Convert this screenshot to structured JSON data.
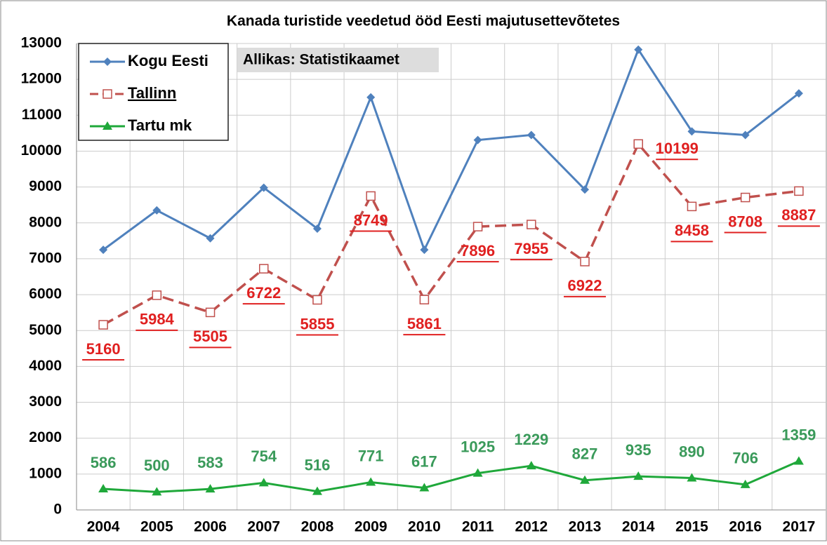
{
  "chart_data": {
    "type": "line",
    "title": "Kanada turistide veedetud ööd Eesti majutusettevõtetes",
    "annotation": "Allikas: Statistikaamet",
    "categories": [
      "2004",
      "2005",
      "2006",
      "2007",
      "2008",
      "2009",
      "2010",
      "2011",
      "2012",
      "2013",
      "2014",
      "2015",
      "2016",
      "2017"
    ],
    "series": [
      {
        "name": "Kogu Eesti",
        "color": "#4f81bd",
        "marker": "diamond",
        "dashed": false,
        "labels": false,
        "values": [
          7250,
          8350,
          7570,
          8980,
          7840,
          11500,
          7250,
          10310,
          10450,
          8930,
          12830,
          10550,
          10450,
          11610
        ]
      },
      {
        "name": "Tallinn",
        "color": "#c0504d",
        "marker": "square",
        "dashed": true,
        "labels": true,
        "label_color": "#e02020",
        "values": [
          5160,
          5984,
          5505,
          6722,
          5855,
          8749,
          5861,
          7896,
          7955,
          6922,
          10199,
          8458,
          8708,
          8887
        ]
      },
      {
        "name": "Tartu mk",
        "color": "#1fa83a",
        "marker": "triangle",
        "dashed": false,
        "labels": true,
        "label_color": "#3a9a5a",
        "values": [
          586,
          500,
          583,
          754,
          516,
          771,
          617,
          1025,
          1229,
          827,
          935,
          890,
          706,
          1359
        ]
      }
    ],
    "ylim": [
      0,
      13000
    ],
    "yticks": [
      0,
      1000,
      2000,
      3000,
      4000,
      5000,
      6000,
      7000,
      8000,
      9000,
      10000,
      11000,
      12000,
      13000
    ],
    "grid": true,
    "legend": "upper left"
  }
}
